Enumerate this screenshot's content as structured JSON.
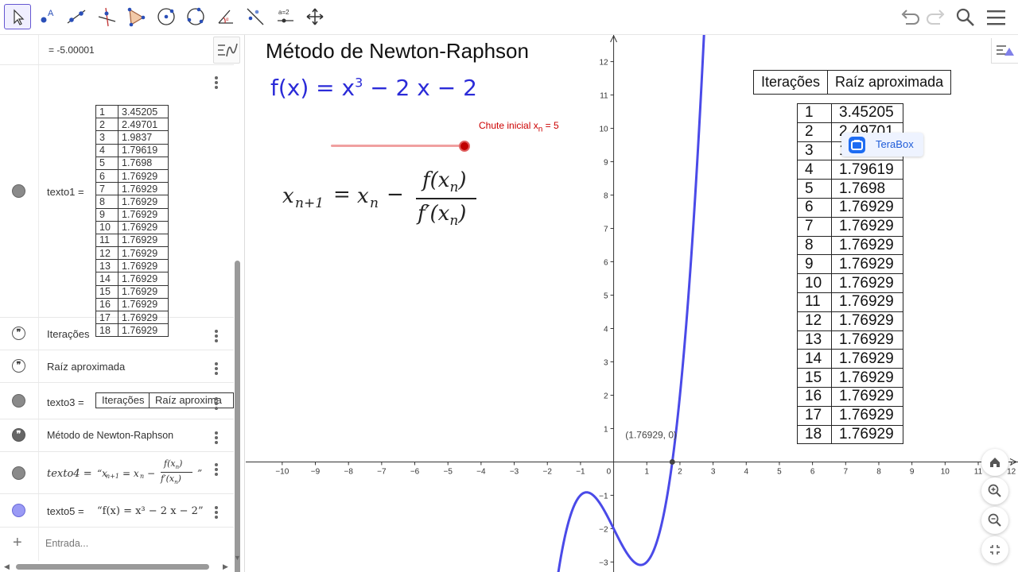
{
  "toolbar": {
    "tools": [
      "move-tool",
      "point-tool",
      "line-tool",
      "perpendicular-line-tool",
      "polygon-tool",
      "circle-center-point-tool",
      "circle-three-points-tool",
      "angle-tool",
      "reflect-about-line-tool",
      "slider-tool",
      "move-graphics-view-tool"
    ],
    "slider_tool_text": "a=2",
    "active_tool": "move-tool"
  },
  "algebra": {
    "top_value": "= -5.00001",
    "rows": [
      {
        "name": "texto1",
        "label": "texto1 ="
      },
      {
        "name": "iteracoes",
        "label": "Iterações"
      },
      {
        "name": "raiz",
        "label": "Raíz aproximada"
      },
      {
        "name": "texto3",
        "label": "texto3 =",
        "cells": [
          "Iterações",
          "Raíz aproxima"
        ]
      },
      {
        "name": "titulo",
        "label": "Método de Newton-Raphson"
      },
      {
        "name": "texto4",
        "label": "texto4 =",
        "formula_left": "“x",
        "formula_right": "”"
      },
      {
        "name": "texto5",
        "label": "texto5 =",
        "value": "“f(x) = x³ − 2 x − 2”"
      }
    ],
    "input_placeholder": "Entrada...",
    "table": [
      [
        "1",
        "3.45205"
      ],
      [
        "2",
        "2.49701"
      ],
      [
        "3",
        "1.9837"
      ],
      [
        "4",
        "1.79619"
      ],
      [
        "5",
        "1.7698"
      ],
      [
        "6",
        "1.76929"
      ],
      [
        "7",
        "1.76929"
      ],
      [
        "8",
        "1.76929"
      ],
      [
        "9",
        "1.76929"
      ],
      [
        "10",
        "1.76929"
      ],
      [
        "11",
        "1.76929"
      ],
      [
        "12",
        "1.76929"
      ],
      [
        "13",
        "1.76929"
      ],
      [
        "14",
        "1.76929"
      ],
      [
        "15",
        "1.76929"
      ],
      [
        "16",
        "1.76929"
      ],
      [
        "17",
        "1.76929"
      ],
      [
        "18",
        "1.76929"
      ]
    ]
  },
  "graphics": {
    "title": "Método de Newton-Raphson",
    "function_text": "f(x) = x",
    "function_exp": "3",
    "function_rest": " − 2 x − 2",
    "slider_label_prefix": "Chute inicial x",
    "slider_label_sub": "n",
    "slider_label_suffix": " = 5",
    "header": [
      "Iterações",
      "Raíz aproximada"
    ],
    "root_label": "(1.76929, 0)",
    "terabox_label": "TeraBox"
  },
  "chart_data": {
    "type": "line",
    "title": "",
    "function": "x^3 - 2x - 2",
    "root": [
      1.76929,
      0
    ],
    "xlim": [
      -11.1,
      12.2
    ],
    "ylim": [
      -3.3,
      12.8
    ],
    "x_ticks": [
      -10,
      -9,
      -8,
      -7,
      -6,
      -5,
      -4,
      -3,
      -2,
      -1,
      0,
      1,
      2,
      3,
      4,
      5,
      6,
      7,
      8,
      9,
      10,
      11,
      12
    ],
    "y_ticks": [
      -3,
      -2,
      -1,
      1,
      2,
      3,
      4,
      5,
      6,
      7,
      8,
      9,
      10,
      11,
      12
    ],
    "grid": false,
    "series": [
      {
        "color": "#4a4ae8"
      }
    ]
  },
  "colors": {
    "accent": "#6557d2",
    "curve": "#4a4ae8",
    "slider": "#cc0000",
    "function_text": "#2b2bd8"
  }
}
